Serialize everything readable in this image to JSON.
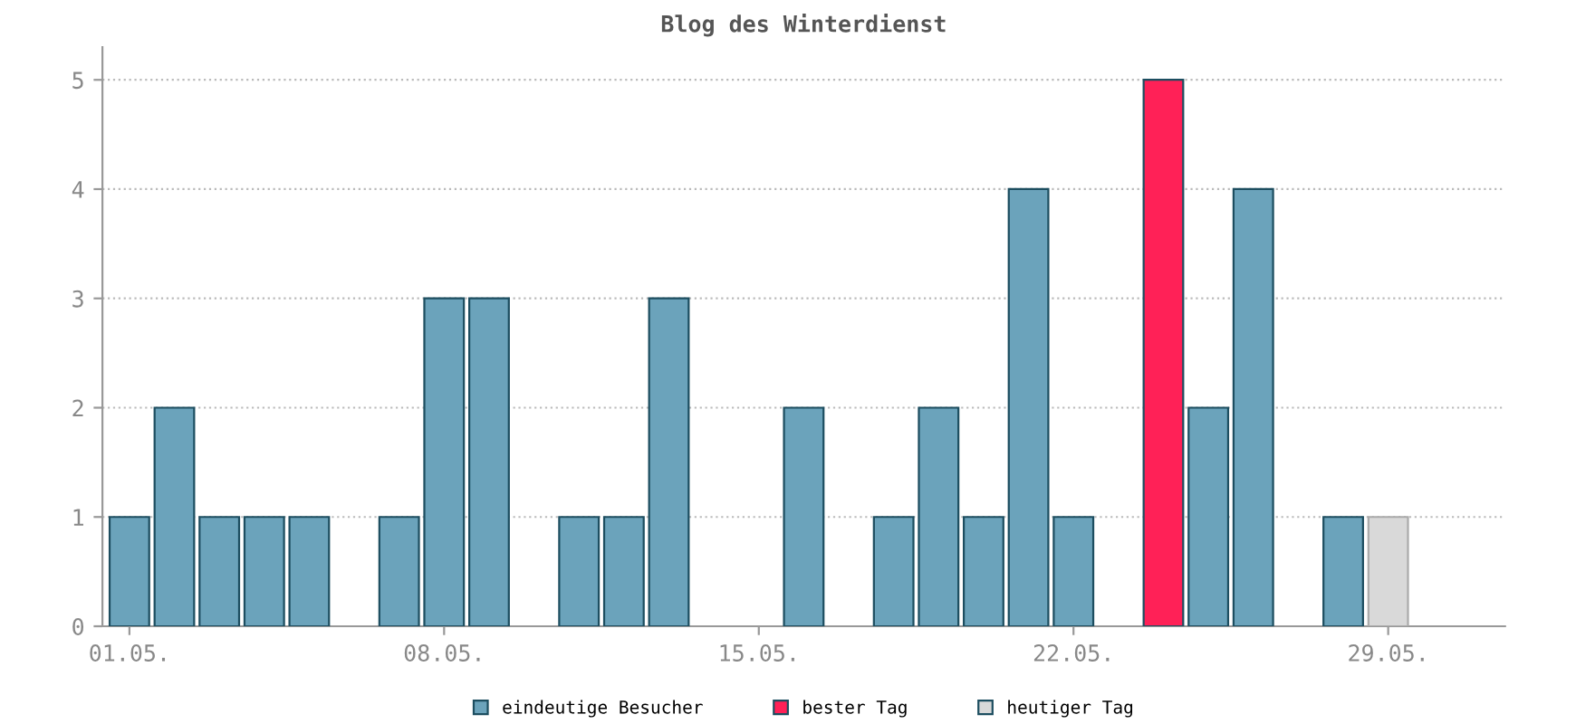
{
  "chart_data": {
    "type": "bar",
    "title": "Blog des Winterdienst",
    "categories": [
      "01.05.",
      null,
      null,
      null,
      null,
      null,
      null,
      "08.05.",
      null,
      null,
      null,
      null,
      null,
      null,
      "15.05.",
      null,
      null,
      null,
      null,
      null,
      null,
      "22.05.",
      null,
      null,
      null,
      null,
      null,
      null,
      "29.05.",
      null,
      null
    ],
    "series": [
      {
        "name": "eindeutige Besucher",
        "color": "#6ba3bb",
        "values": [
          1,
          2,
          1,
          1,
          1,
          null,
          1,
          3,
          3,
          null,
          1,
          1,
          3,
          null,
          null,
          2,
          null,
          1,
          2,
          1,
          4,
          1,
          null,
          null,
          2,
          4,
          null,
          1,
          null,
          null,
          null
        ]
      },
      {
        "name": "bester Tag",
        "color": "#ff2157",
        "values": [
          null,
          null,
          null,
          null,
          null,
          null,
          null,
          null,
          null,
          null,
          null,
          null,
          null,
          null,
          null,
          null,
          null,
          null,
          null,
          null,
          null,
          null,
          null,
          5,
          null,
          null,
          null,
          null,
          null,
          null,
          null
        ]
      },
      {
        "name": "heutiger Tag",
        "color": "#d9d9d9",
        "values": [
          null,
          null,
          null,
          null,
          null,
          null,
          null,
          null,
          null,
          null,
          null,
          null,
          null,
          null,
          null,
          null,
          null,
          null,
          null,
          null,
          null,
          null,
          null,
          null,
          null,
          null,
          null,
          null,
          1,
          null,
          null
        ]
      }
    ],
    "ylim": [
      0,
      5.3
    ],
    "yticks": [
      0,
      1,
      2,
      3,
      4,
      5
    ],
    "grid": "y",
    "legend": "bottom"
  }
}
